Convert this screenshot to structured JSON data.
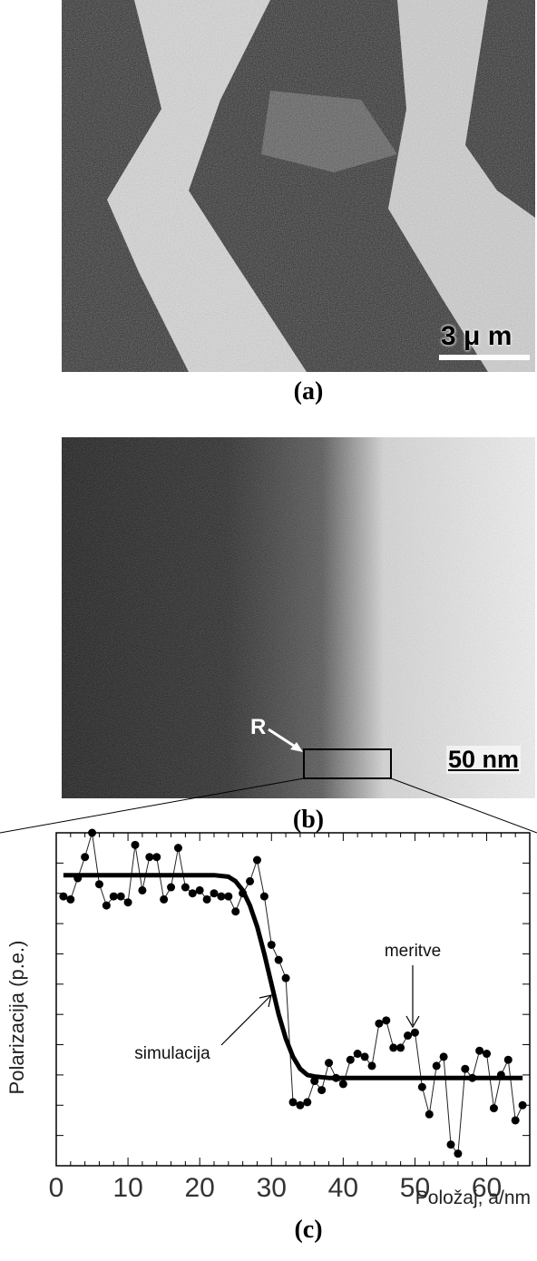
{
  "panels": {
    "a": {
      "caption": "(a)",
      "scale_bar": "3 μ m"
    },
    "b": {
      "caption": "(b)",
      "scale_bar": "50 nm",
      "region_marker": "R"
    },
    "c": {
      "caption": "(c)"
    }
  },
  "chart_data": {
    "type": "scatter",
    "xlabel": "Položaj, a/nm",
    "ylabel": "Polarizacija (p.e.)",
    "xlim": [
      0,
      66
    ],
    "ylim": [
      0,
      11
    ],
    "xticks": [
      0,
      10,
      20,
      30,
      40,
      50,
      60
    ],
    "annotations": {
      "measurement": "meritve",
      "simulation": "simulacija"
    },
    "series": [
      {
        "kind": "measurement",
        "x": [
          1,
          2,
          3,
          4,
          5,
          6,
          7,
          8,
          9,
          10,
          11,
          12,
          13,
          14,
          15,
          16,
          17,
          18,
          19,
          20,
          21,
          22,
          23,
          24,
          25,
          26,
          27,
          28,
          29,
          30,
          31,
          32,
          33,
          34,
          35,
          36,
          37,
          38,
          39,
          40,
          41,
          42,
          43,
          44,
          45,
          46,
          47,
          48,
          49,
          50,
          51,
          52,
          53,
          54,
          55,
          56,
          57,
          58,
          59,
          60,
          61,
          62,
          63,
          64,
          65
        ],
        "y": [
          8.9,
          8.8,
          9.5,
          10.2,
          11.0,
          9.3,
          8.6,
          8.9,
          8.9,
          8.7,
          10.6,
          9.1,
          10.2,
          10.2,
          8.8,
          9.2,
          10.5,
          9.2,
          9.0,
          9.1,
          8.8,
          9.0,
          8.9,
          8.9,
          8.4,
          9.0,
          9.4,
          10.1,
          8.9,
          7.3,
          6.8,
          6.2,
          2.1,
          2.0,
          2.1,
          2.8,
          2.5,
          3.4,
          2.9,
          2.7,
          3.5,
          3.7,
          3.6,
          3.3,
          4.7,
          4.8,
          3.9,
          3.9,
          4.3,
          4.4,
          2.6,
          1.7,
          3.3,
          3.6,
          0.7,
          0.4,
          3.2,
          2.9,
          3.8,
          3.7,
          1.9,
          3.0,
          3.5,
          1.5,
          2.0
        ]
      },
      {
        "kind": "simulation",
        "x": [
          1,
          5,
          10,
          15,
          20,
          22,
          24,
          25,
          26,
          27,
          28,
          29,
          30,
          31,
          32,
          33,
          34,
          35,
          36,
          38,
          40,
          45,
          50,
          55,
          60,
          65
        ],
        "y": [
          9.6,
          9.6,
          9.6,
          9.6,
          9.6,
          9.6,
          9.55,
          9.4,
          9.1,
          8.6,
          7.9,
          7.0,
          6.0,
          5.0,
          4.2,
          3.6,
          3.2,
          3.0,
          2.95,
          2.9,
          2.9,
          2.9,
          2.9,
          2.9,
          2.9,
          2.9
        ]
      }
    ]
  }
}
